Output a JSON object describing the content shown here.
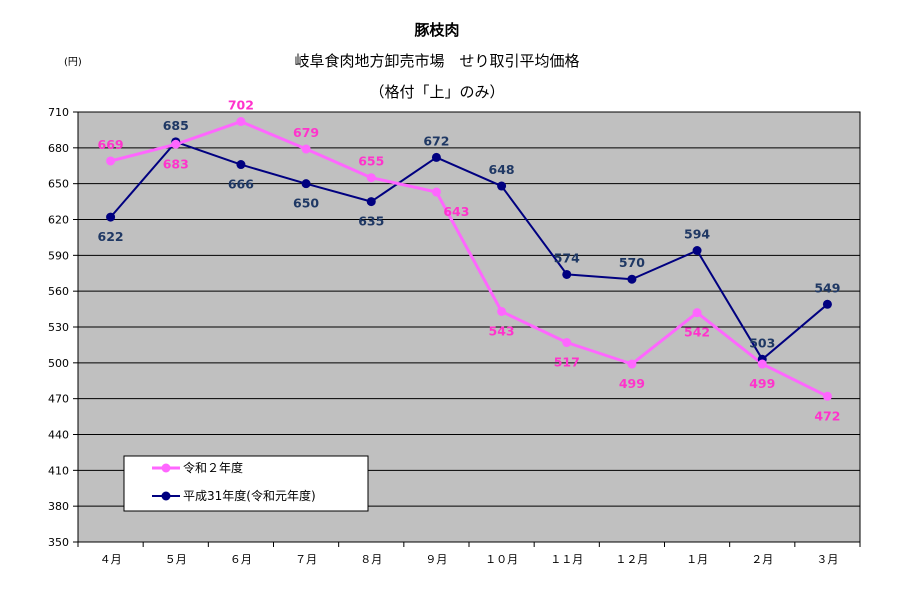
{
  "chart_data": {
    "type": "line",
    "title": "豚枝肉",
    "subtitle_1": "岐阜食肉地方卸売市場　せり取引平均価格",
    "subtitle_2": "（格付「上」のみ）",
    "y_unit_label": "(円)",
    "ylim": [
      350,
      710
    ],
    "yticks": [
      350,
      380,
      410,
      440,
      470,
      500,
      530,
      560,
      590,
      620,
      650,
      680,
      710
    ],
    "grid": true,
    "legend_position": "bottom-left",
    "categories": [
      "４月",
      "５月",
      "６月",
      "７月",
      "８月",
      "９月",
      "１０月",
      "１１月",
      "１２月",
      "１月",
      "２月",
      "３月"
    ],
    "series": [
      {
        "name": "令和２年度",
        "color": "#ff66ff",
        "values": [
          669,
          683,
          702,
          679,
          655,
          643,
          543,
          517,
          499,
          542,
          499,
          472
        ]
      },
      {
        "name": "平成31年度(令和元年度)",
        "color": "#000080",
        "values": [
          622,
          685,
          666,
          650,
          635,
          672,
          648,
          574,
          570,
          594,
          503,
          549
        ]
      }
    ],
    "label_colors": {
      "series_0": "#ff33cc",
      "series_1": "#1f3864"
    },
    "plot_background": "#c0c0c0"
  }
}
